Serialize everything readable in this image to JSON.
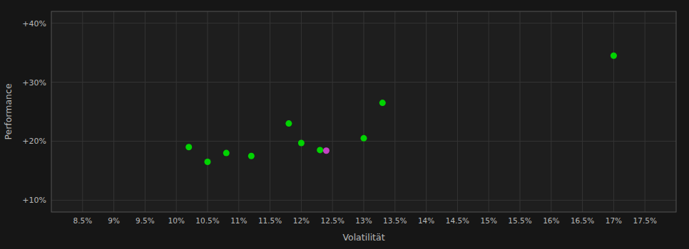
{
  "chart_data": {
    "type": "scatter",
    "xlabel": "Volatilität",
    "ylabel": "Performance",
    "xlim": [
      0.08,
      0.18
    ],
    "ylim": [
      0.08,
      0.42
    ],
    "xticks": [
      {
        "value": 0.085,
        "label": "8.5%"
      },
      {
        "value": 0.09,
        "label": "9%"
      },
      {
        "value": 0.095,
        "label": "9.5%"
      },
      {
        "value": 0.1,
        "label": "10%"
      },
      {
        "value": 0.105,
        "label": "10.5%"
      },
      {
        "value": 0.11,
        "label": "11%"
      },
      {
        "value": 0.115,
        "label": "11.5%"
      },
      {
        "value": 0.12,
        "label": "12%"
      },
      {
        "value": 0.125,
        "label": "12.5%"
      },
      {
        "value": 0.13,
        "label": "13%"
      },
      {
        "value": 0.135,
        "label": "13.5%"
      },
      {
        "value": 0.14,
        "label": "14%"
      },
      {
        "value": 0.145,
        "label": "14.5%"
      },
      {
        "value": 0.15,
        "label": "15%"
      },
      {
        "value": 0.155,
        "label": "15.5%"
      },
      {
        "value": 0.16,
        "label": "16%"
      },
      {
        "value": 0.165,
        "label": "16.5%"
      },
      {
        "value": 0.17,
        "label": "17%"
      },
      {
        "value": 0.175,
        "label": "17.5%"
      }
    ],
    "yticks": [
      {
        "value": 0.1,
        "label": "+10%"
      },
      {
        "value": 0.2,
        "label": "+20%"
      },
      {
        "value": 0.3,
        "label": "+30%"
      },
      {
        "value": 0.4,
        "label": "+40%"
      }
    ],
    "grid": true,
    "series": [
      {
        "color": "#00dd00",
        "x": [
          0.102,
          0.105,
          0.108,
          0.112,
          0.118,
          0.12,
          0.123,
          0.13,
          0.133,
          0.17
        ],
        "values": [
          0.19,
          0.165,
          0.18,
          0.175,
          0.23,
          0.197,
          0.185,
          0.205,
          0.265,
          0.345
        ]
      },
      {
        "color": "#cc44cc",
        "x": [
          0.124
        ],
        "values": [
          0.184
        ]
      }
    ]
  }
}
